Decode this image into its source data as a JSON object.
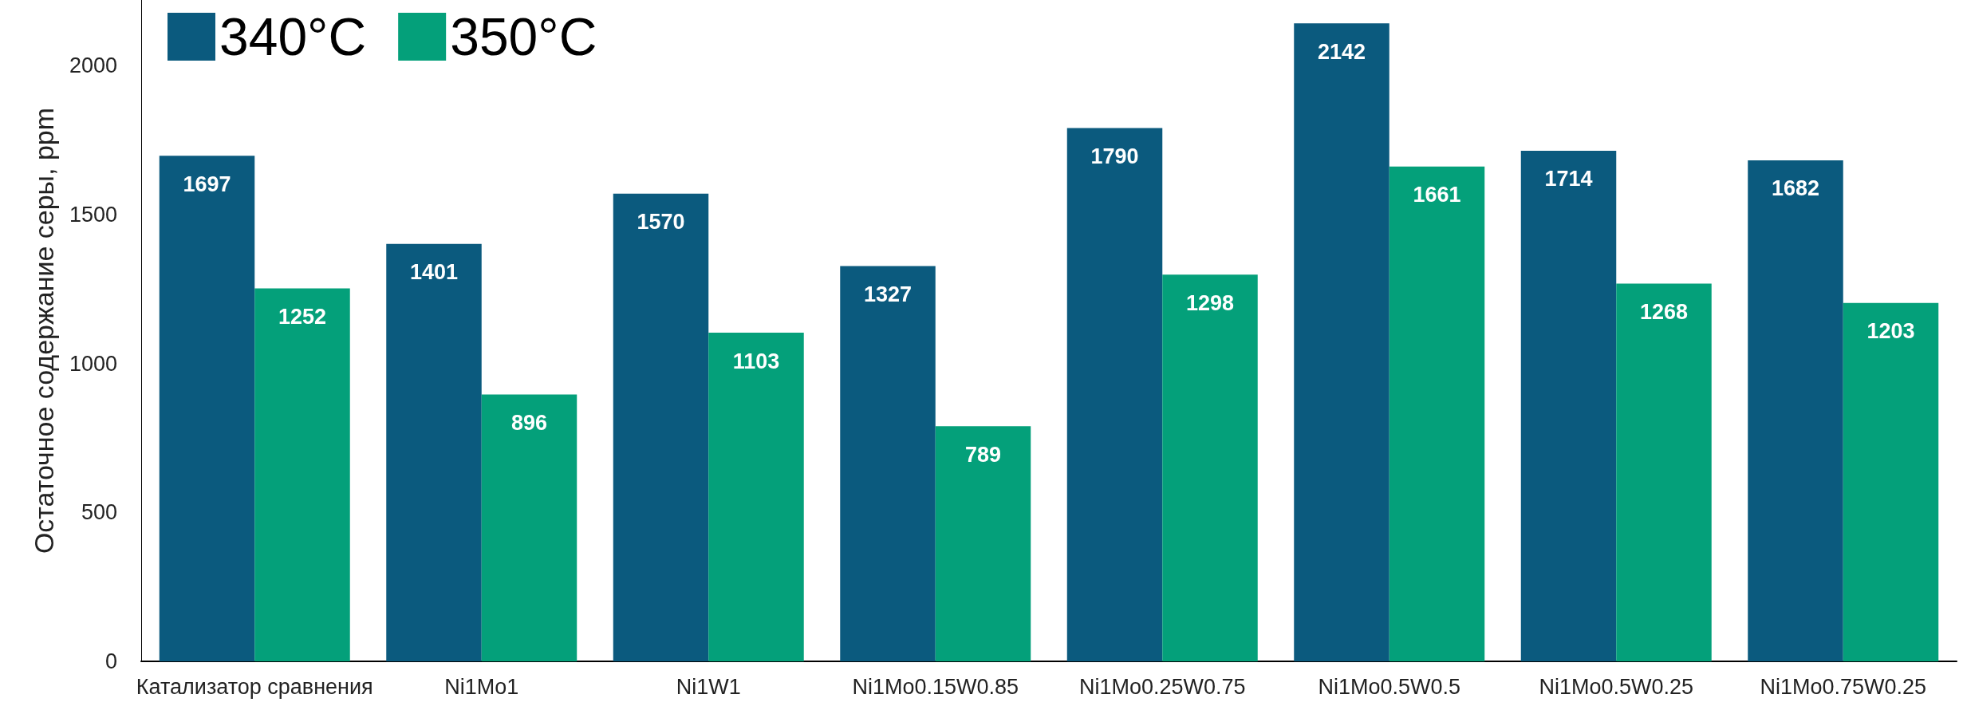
{
  "chart_data": {
    "type": "bar",
    "ylabel": "Остаточное содержание серы, ppm",
    "categories": [
      "Катализатор сравнения",
      "Ni1Mo1",
      "Ni1W1",
      "Ni1Mo0.15W0.85",
      "Ni1Mo0.25W0.75",
      "Ni1Mo0.5W0.5",
      "Ni1Mo0.5W0.25",
      "Ni1Mo0.75W0.25"
    ],
    "series": [
      {
        "name": "340°C",
        "color": "#0b5a7e",
        "values": [
          1697,
          1401,
          1570,
          1327,
          1790,
          2142,
          1714,
          1682
        ]
      },
      {
        "name": "350°C",
        "color": "#04a07a",
        "values": [
          1252,
          896,
          1103,
          789,
          1298,
          1661,
          1268,
          1203
        ]
      }
    ],
    "ylim": [
      0,
      2220
    ],
    "yticks": [
      0,
      500,
      1000,
      1500,
      2000
    ],
    "grid": false,
    "legend": "top left",
    "data_labels": true
  }
}
